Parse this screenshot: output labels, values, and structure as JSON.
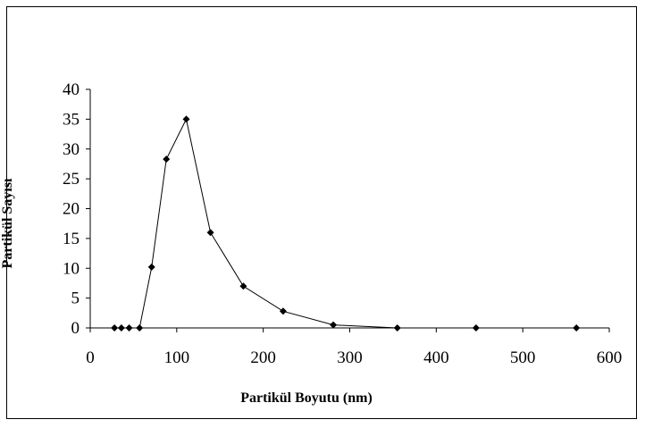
{
  "chart_data": {
    "type": "line",
    "xlabel": "Partikül Boyutu (nm)",
    "ylabel": "Partikül Sayısı",
    "xlim": [
      0,
      600
    ],
    "ylim": [
      0,
      40
    ],
    "x_ticks": [
      0,
      100,
      200,
      300,
      400,
      500,
      600
    ],
    "y_ticks": [
      0,
      5,
      10,
      15,
      20,
      25,
      30,
      35,
      40
    ],
    "grid": false,
    "legend": "none",
    "line_color": "#000000",
    "series": [
      {
        "x": [
          28,
          36,
          45,
          57,
          71,
          88,
          111,
          139,
          177,
          223,
          281,
          355,
          446,
          562
        ],
        "y": [
          0,
          0,
          0,
          0,
          10.2,
          28.3,
          35,
          16,
          7,
          2.8,
          0.5,
          0,
          0,
          0
        ]
      }
    ]
  }
}
